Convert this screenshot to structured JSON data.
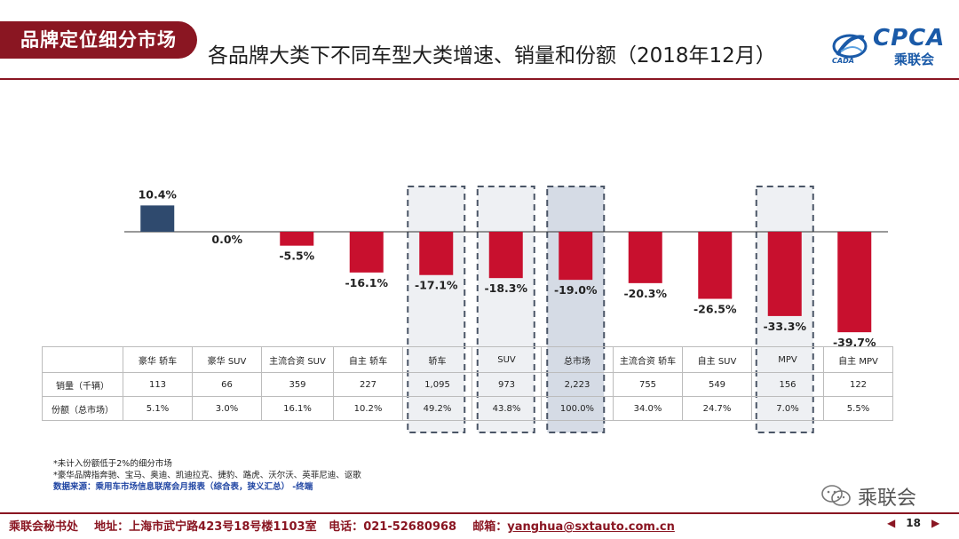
{
  "header": {
    "badge": "品牌定位细分市场",
    "title": "各品牌大类下不同车型大类增速、销量和份额（2018年12月）",
    "logo_text": "CPCA",
    "logo_sub": "乘联会",
    "logo_mini": "CADA"
  },
  "chart_data": {
    "type": "bar",
    "categories": [
      "豪华 轿车",
      "豪华 SUV",
      "主流合资 SUV",
      "自主 轿车",
      "轿车",
      "SUV",
      "总市场",
      "主流合资 轿车",
      "自主 SUV",
      "MPV",
      "自主 MPV"
    ],
    "values": [
      10.4,
      0.0,
      -5.5,
      -16.1,
      -17.1,
      -18.3,
      -19.0,
      -20.3,
      -26.5,
      -33.3,
      -39.7
    ],
    "value_labels": [
      "10.4%",
      "0.0%",
      "-5.5%",
      "-16.1%",
      "-17.1%",
      "-18.3%",
      "-19.0%",
      "-20.3%",
      "-26.5%",
      "-33.3%",
      "-39.7%"
    ],
    "highlighted": [
      "轿车",
      "SUV",
      "总市场",
      "MPV"
    ],
    "ylim": [
      -40,
      12
    ],
    "colors": {
      "positive": "#2f4a6e",
      "negative": "#c8102e",
      "highlight_fill": "#eef0f3",
      "total_fill": "#d5dbe5",
      "dash": "#4a5566"
    }
  },
  "table": {
    "rows": [
      {
        "label": "销量（千辆）",
        "values": [
          "113",
          "66",
          "359",
          "227",
          "1,095",
          "973",
          "2,223",
          "755",
          "549",
          "156",
          "122"
        ]
      },
      {
        "label": "份额（总市场）",
        "values": [
          "5.1%",
          "3.0%",
          "16.1%",
          "10.2%",
          "49.2%",
          "43.8%",
          "100.0%",
          "34.0%",
          "24.7%",
          "7.0%",
          "5.5%"
        ]
      }
    ]
  },
  "notes": {
    "line1": "*未计入份额低于2%的细分市场",
    "line2": "*豪华品牌指奔驰、宝马、奥迪、凯迪拉克、捷豹、路虎、沃尔沃、英菲尼迪、讴歌",
    "source": "数据来源：乘用车市场信息联席会月报表（综合表，狭义汇总）  -终端"
  },
  "watermark": "乘联会",
  "footer": {
    "org": "乘联会秘书处",
    "address_label": "地址：",
    "address": "上海市武宁路423号18号楼1103室",
    "phone_label": "电话：",
    "phone": "021-52680968",
    "email_label": "邮箱：",
    "email": "yanghua@sxtauto.com.cn",
    "page": "18"
  }
}
